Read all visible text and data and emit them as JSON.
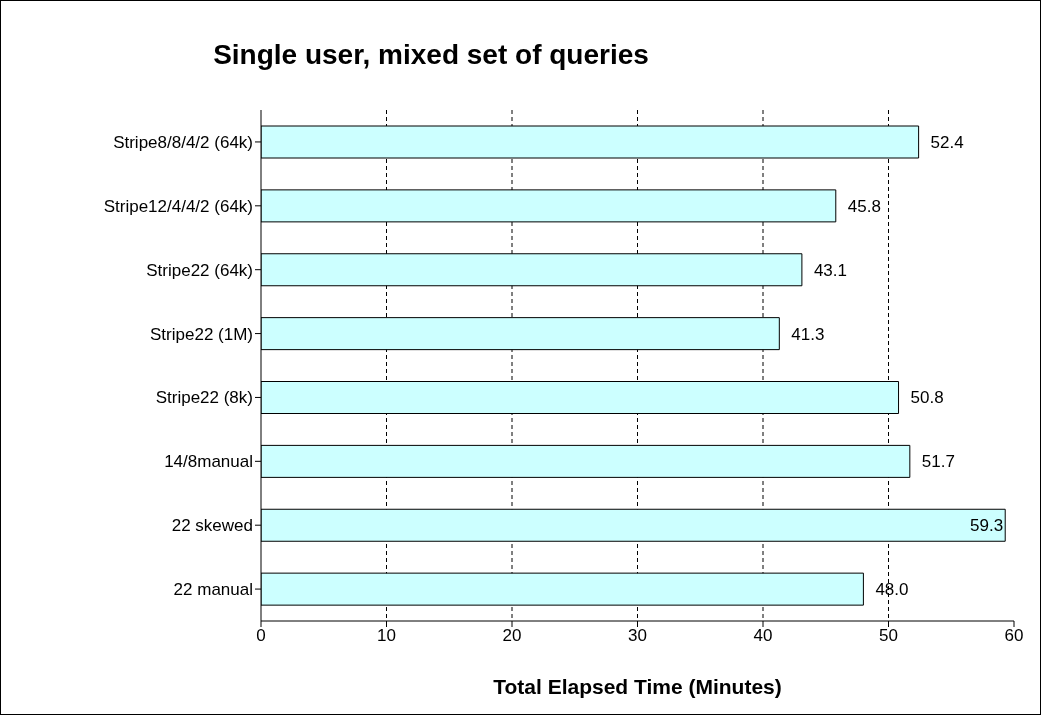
{
  "chart_data": {
    "type": "bar",
    "orientation": "horizontal",
    "title": "Single user, mixed set of queries",
    "xlabel": "Total Elapsed Time (Minutes)",
    "categories": [
      "Stripe8/8/4/2 (64k)",
      "Stripe12/4/4/2 (64k)",
      "Stripe22 (64k)",
      "Stripe22 (1M)",
      "Stripe22 (8k)",
      "14/8manual",
      "22 skewed",
      "22 manual"
    ],
    "values": [
      52.4,
      45.8,
      43.1,
      41.3,
      50.8,
      51.7,
      59.3,
      48.0
    ],
    "value_labels": [
      "52.4",
      "45.8",
      "43.1",
      "41.3",
      "50.8",
      "51.7",
      "59.3",
      "48.0"
    ],
    "color": "#ccffff",
    "xlim": [
      0,
      60
    ],
    "xticks": [
      0,
      10,
      20,
      30,
      40,
      50,
      60
    ],
    "grid": "x"
  }
}
